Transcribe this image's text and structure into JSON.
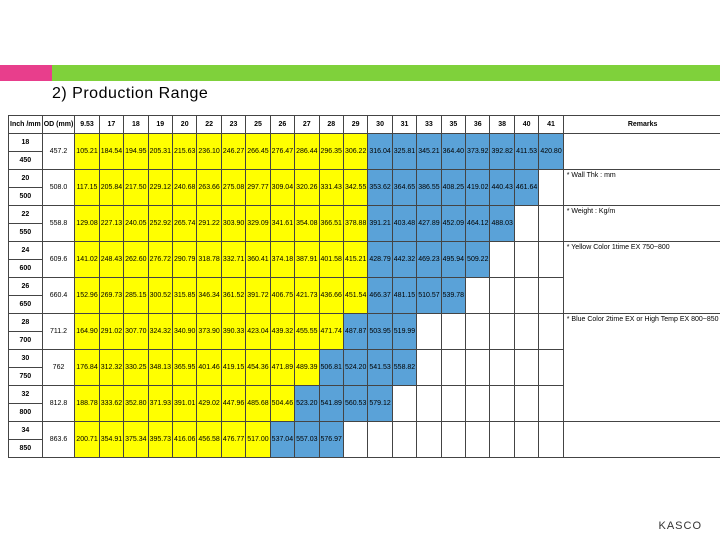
{
  "title": "2) Production Range",
  "footer": "KASCO",
  "columns": [
    "Inch /mm",
    "OD (mm)",
    "9.53",
    "17",
    "18",
    "19",
    "20",
    "22",
    "23",
    "25",
    "26",
    "27",
    "28",
    "29",
    "30",
    "31",
    "33",
    "35",
    "36",
    "38",
    "40",
    "41",
    "Remarks"
  ],
  "rowHeaders": [
    "18",
    "450",
    "20",
    "500",
    "22",
    "550",
    "24",
    "600",
    "26",
    "650",
    "28",
    "700",
    "30",
    "750",
    "32",
    "800",
    "34",
    "850"
  ],
  "dataRows": [
    {
      "vals": [
        "457.2",
        "105.21",
        "184.54",
        "194.95",
        "205.31",
        "215.63",
        "236.10",
        "246.27",
        "266.45",
        "276.47",
        "286.44",
        "296.35",
        "306.22",
        "316.04",
        "325.81",
        "345.21",
        "364.40",
        "373.92",
        "392.82",
        "411.53",
        "420.80"
      ],
      "yStart": 0,
      "yEnd": 12
    },
    {
      "vals": [
        "508.0",
        "117.15",
        "205.84",
        "217.50",
        "229.12",
        "240.68",
        "263.66",
        "275.08",
        "297.77",
        "309.04",
        "320.26",
        "331.43",
        "342.55",
        "353.62",
        "364.65",
        "386.55",
        "408.25",
        "419.02",
        "440.43",
        "461.64",
        ""
      ],
      "yStart": 0,
      "yEnd": 12
    },
    {
      "vals": [
        "558.8",
        "129.08",
        "227.13",
        "240.05",
        "252.92",
        "265.74",
        "291.22",
        "303.90",
        "329.09",
        "341.61",
        "354.08",
        "366.51",
        "378.88",
        "391.21",
        "403.48",
        "427.89",
        "452.09",
        "464.12",
        "488.03",
        "",
        ""
      ],
      "yStart": 0,
      "yEnd": 12
    },
    {
      "vals": [
        "609.6",
        "141.02",
        "248.43",
        "262.60",
        "276.72",
        "290.79",
        "318.78",
        "332.71",
        "360.41",
        "374.18",
        "387.91",
        "401.58",
        "415.21",
        "428.79",
        "442.32",
        "469.23",
        "495.94",
        "509.22",
        "",
        "",
        ""
      ],
      "yStart": 0,
      "yEnd": 12
    },
    {
      "vals": [
        "660.4",
        "152.96",
        "269.73",
        "285.15",
        "300.52",
        "315.85",
        "346.34",
        "361.52",
        "391.72",
        "406.75",
        "421.73",
        "436.66",
        "451.54",
        "466.37",
        "481.15",
        "510.57",
        "539.78",
        "",
        "",
        "",
        ""
      ],
      "yStart": 0,
      "yEnd": 12
    },
    {
      "vals": [
        "711.2",
        "164.90",
        "291.02",
        "307.70",
        "324.32",
        "340.90",
        "373.90",
        "390.33",
        "423.04",
        "439.32",
        "455.55",
        "471.74",
        "487.87",
        "503.95",
        "519.99",
        "",
        "",
        "",
        "",
        "",
        ""
      ],
      "yStart": 0,
      "yEnd": 11
    },
    {
      "vals": [
        "762",
        "176.84",
        "312.32",
        "330.25",
        "348.13",
        "365.95",
        "401.46",
        "419.15",
        "454.36",
        "471.89",
        "489.39",
        "506.81",
        "524.20",
        "541.53",
        "558.82",
        "",
        "",
        "",
        "",
        "",
        ""
      ],
      "yStart": 0,
      "yEnd": 10
    },
    {
      "vals": [
        "812.8",
        "188.78",
        "333.62",
        "352.80",
        "371.93",
        "391.01",
        "429.02",
        "447.96",
        "485.68",
        "504.46",
        "523.20",
        "541.89",
        "560.53",
        "579.12",
        "",
        "",
        "",
        "",
        "",
        "",
        ""
      ],
      "yStart": 0,
      "yEnd": 9
    },
    {
      "vals": [
        "863.6",
        "200.71",
        "354.91",
        "375.34",
        "395.73",
        "416.06",
        "456.58",
        "476.77",
        "517.00",
        "537.04",
        "557.03",
        "576.97",
        "",
        "",
        "",
        "",
        "",
        "",
        "",
        "",
        ""
      ],
      "yStart": 0,
      "yEnd": 8
    }
  ],
  "remarks": [
    "* Wall Thk : mm",
    "* Weight : Kg/m",
    "* Yellow Color 1time EX 750~800",
    "* Blue Color 2time EX or High Temp EX 800~850"
  ],
  "colors": {
    "yellow": "#ffff00",
    "blue": "#5aa2d8",
    "green": "#7fd13b",
    "pink": "#e83e8c"
  }
}
